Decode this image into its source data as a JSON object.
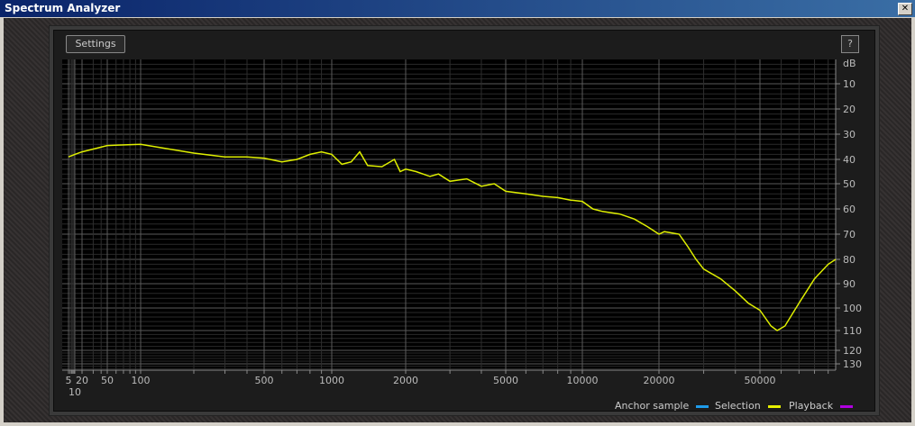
{
  "window": {
    "title": "Spectrum Analyzer",
    "close_icon": "close-icon"
  },
  "toolbar": {
    "settings_label": "Settings",
    "help_label": "?"
  },
  "legend": [
    {
      "label": "Anchor sample",
      "color": "#1e9bea"
    },
    {
      "label": "Selection",
      "color": "#e6f000"
    },
    {
      "label": "Playback",
      "color": "#b000e0"
    }
  ],
  "chart_data": {
    "type": "line",
    "xscale": "log",
    "xlim": [
      5,
      96000
    ],
    "ylim": [
      0,
      135
    ],
    "yunit": "dB",
    "y_inverted": true,
    "grid": true,
    "xticks": [
      "5",
      "10",
      "20",
      "50",
      "100",
      "500",
      "1000",
      "2000",
      "5000",
      "10000",
      "20000",
      "50000"
    ],
    "yticks": [
      "10",
      "20",
      "30",
      "40",
      "50",
      "60",
      "70",
      "80",
      "90",
      "100",
      "110",
      "120",
      "130"
    ],
    "series": [
      {
        "color": "#dfef00",
        "points": [
          [
            5,
            39
          ],
          [
            10,
            38
          ],
          [
            20,
            37
          ],
          [
            50,
            34.5
          ],
          [
            100,
            34
          ],
          [
            200,
            37.5
          ],
          [
            300,
            39
          ],
          [
            400,
            39
          ],
          [
            500,
            39.5
          ],
          [
            600,
            41
          ],
          [
            700,
            40
          ],
          [
            800,
            38
          ],
          [
            900,
            37
          ],
          [
            1000,
            38
          ],
          [
            1100,
            42
          ],
          [
            1200,
            41
          ],
          [
            1300,
            37
          ],
          [
            1400,
            42.5
          ],
          [
            1600,
            43
          ],
          [
            1800,
            40
          ],
          [
            1900,
            45
          ],
          [
            2000,
            44
          ],
          [
            2200,
            45
          ],
          [
            2500,
            47
          ],
          [
            2700,
            46
          ],
          [
            3000,
            49
          ],
          [
            3500,
            48
          ],
          [
            4000,
            51
          ],
          [
            4500,
            50
          ],
          [
            5000,
            53
          ],
          [
            6000,
            54
          ],
          [
            7000,
            55
          ],
          [
            8000,
            55.5
          ],
          [
            9000,
            56.5
          ],
          [
            10000,
            57
          ],
          [
            11000,
            60
          ],
          [
            12000,
            61
          ],
          [
            14000,
            62
          ],
          [
            16000,
            64
          ],
          [
            18000,
            67
          ],
          [
            20000,
            70
          ],
          [
            21000,
            69
          ],
          [
            24000,
            70
          ],
          [
            26000,
            75
          ],
          [
            28000,
            80
          ],
          [
            30000,
            84
          ],
          [
            35000,
            88
          ],
          [
            40000,
            93
          ],
          [
            45000,
            98
          ],
          [
            50000,
            101
          ],
          [
            55000,
            108
          ],
          [
            58000,
            110
          ],
          [
            62000,
            108
          ],
          [
            70000,
            98
          ],
          [
            80000,
            88
          ],
          [
            90000,
            82
          ],
          [
            96000,
            80
          ]
        ]
      }
    ]
  }
}
